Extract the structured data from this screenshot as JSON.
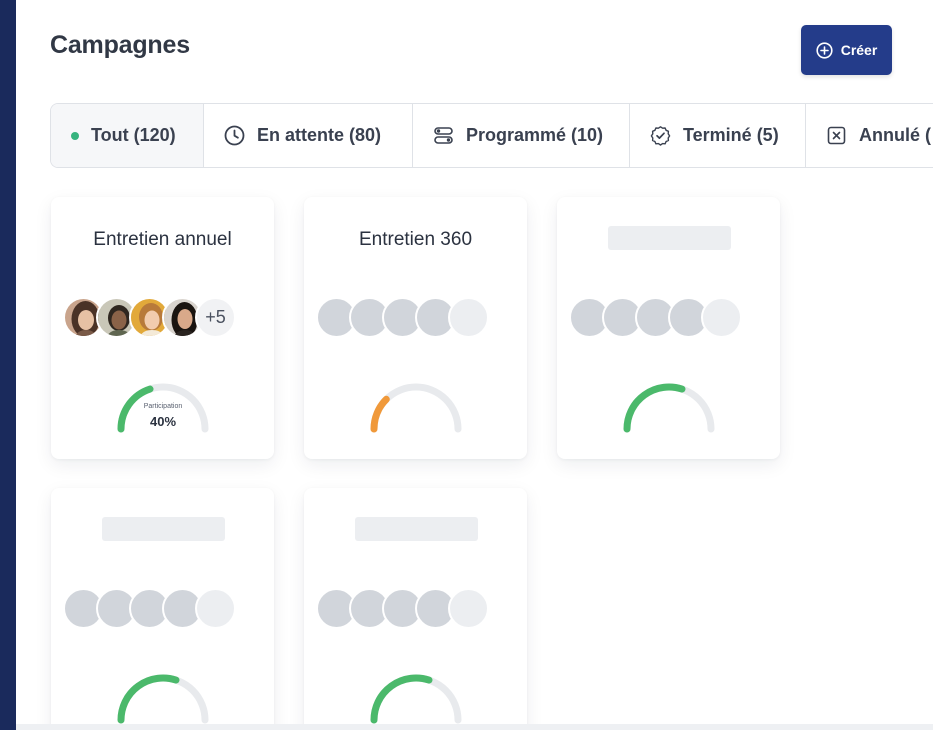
{
  "header": {
    "title": "Campagnes"
  },
  "actions": {
    "create_label": "Créer",
    "create_icon": "plus-circle-icon"
  },
  "tabs": [
    {
      "label": "Tout (120)",
      "icon": "dot-icon",
      "active": true
    },
    {
      "label": "En attente (80)",
      "icon": "clock-icon",
      "active": false
    },
    {
      "label": "Programmé (10)",
      "icon": "toggle-icon",
      "active": false
    },
    {
      "label": "Terminé (5)",
      "icon": "check-circle-icon",
      "active": false
    },
    {
      "label": "Annulé (",
      "icon": "x-square-icon",
      "active": false
    }
  ],
  "colors": {
    "brand": "#243c8a",
    "rail": "#1a2a5c",
    "gauge_green": "#4bb96b",
    "gauge_orange": "#f0993a",
    "gauge_track": "#e8eaed",
    "active_dot": "#36b37e"
  },
  "campaigns": [
    {
      "title": "Entretien annuel",
      "extra_participants": "+5",
      "participation_label": "Participation",
      "participation_value": "40%",
      "participation": 0.4,
      "gauge_color": "#4bb96b"
    },
    {
      "title": "Entretien 360",
      "participation": 0.25,
      "gauge_color": "#f0993a"
    },
    {
      "title": "",
      "participation": 0.6,
      "gauge_color": "#4bb96b"
    },
    {
      "title": "",
      "participation": 0.6,
      "gauge_color": "#4bb96b"
    },
    {
      "title": "",
      "participation": 0.6,
      "gauge_color": "#4bb96b"
    }
  ]
}
